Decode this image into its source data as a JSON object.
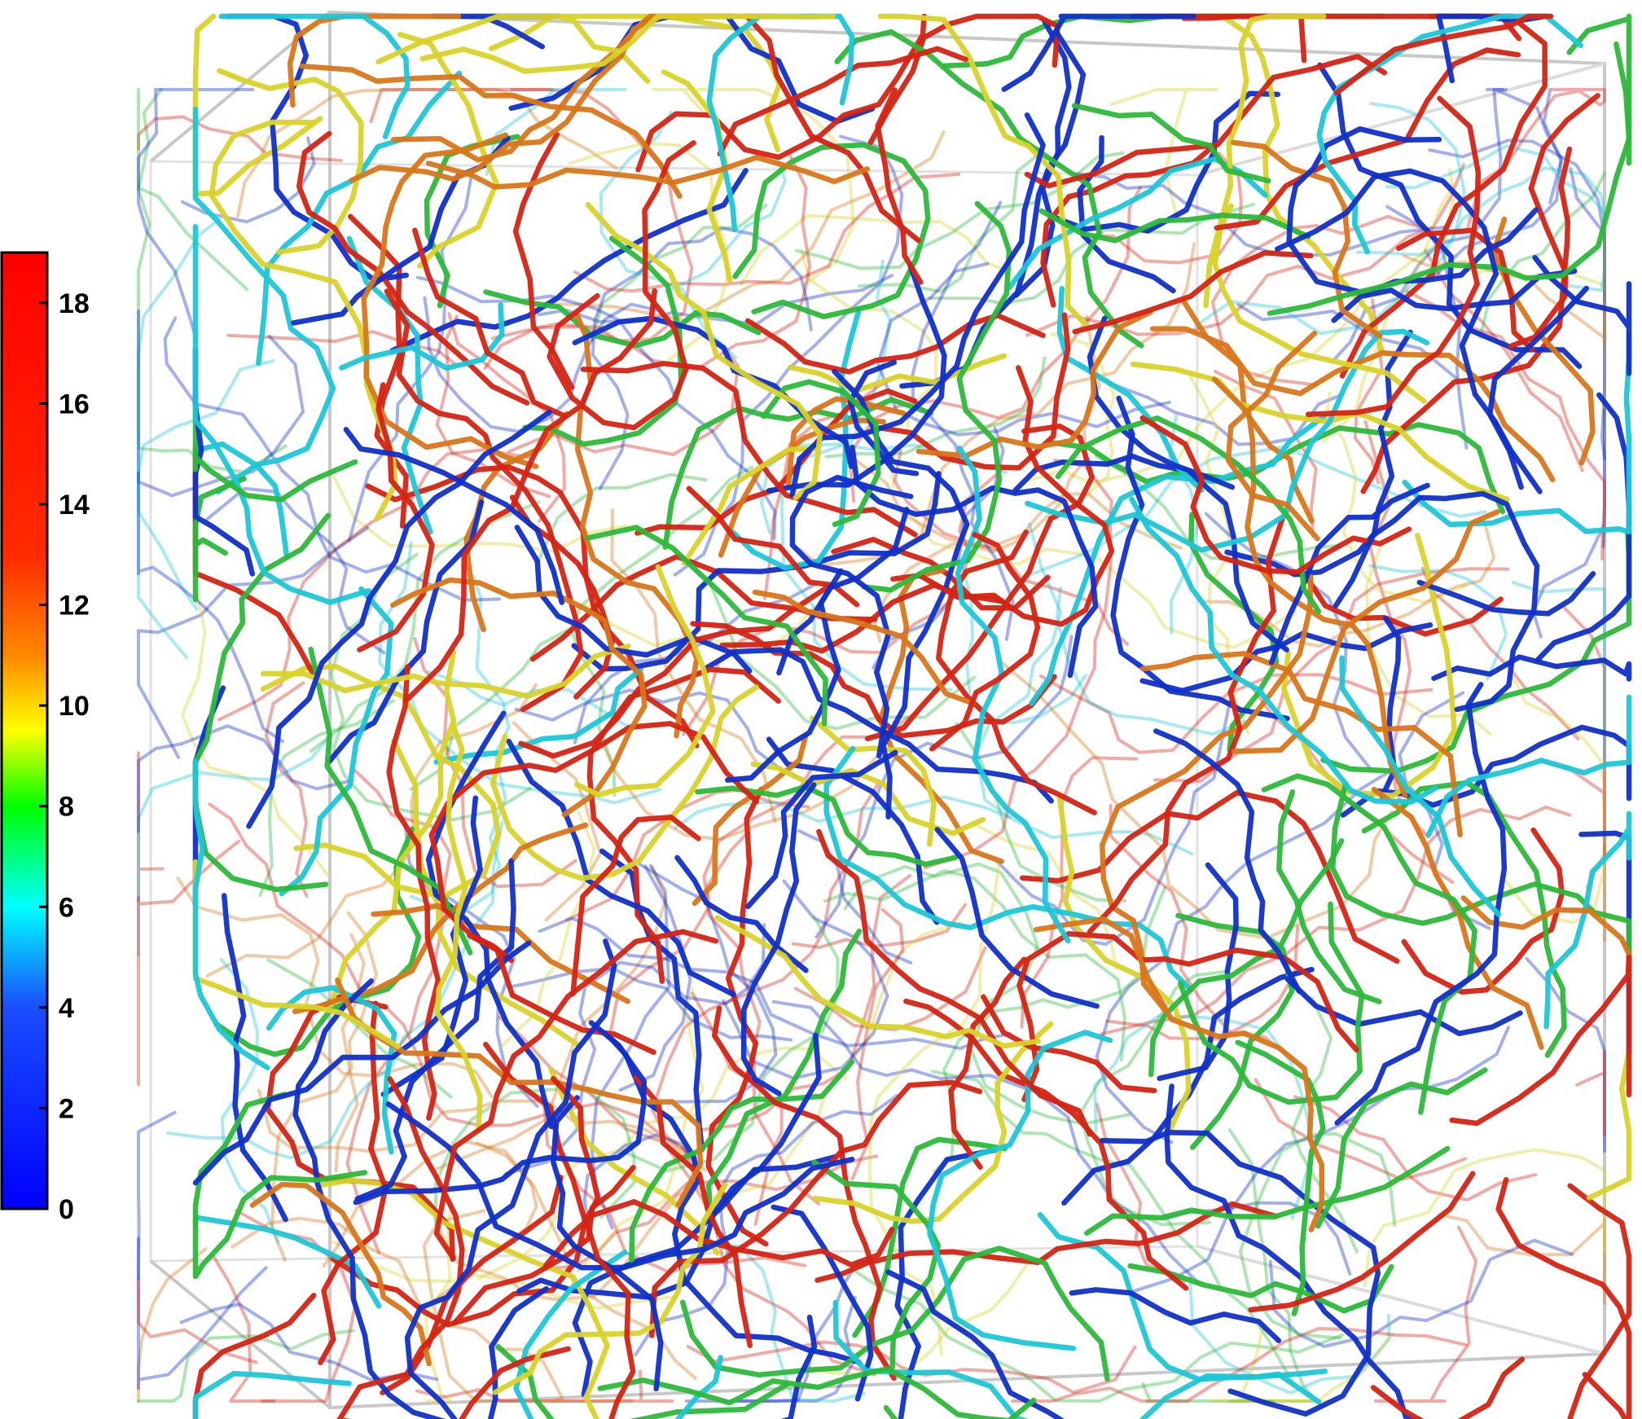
{
  "colorbar": {
    "min": 0,
    "max": 19,
    "ticks": [
      {
        "value": 0,
        "label": "0"
      },
      {
        "value": 2,
        "label": "2"
      },
      {
        "value": 4,
        "label": "4"
      },
      {
        "value": 6,
        "label": "6"
      },
      {
        "value": 8,
        "label": "8"
      },
      {
        "value": 10,
        "label": "10"
      },
      {
        "value": 12,
        "label": "12"
      },
      {
        "value": 14,
        "label": "14"
      },
      {
        "value": 16,
        "label": "16"
      },
      {
        "value": 18,
        "label": "18"
      }
    ],
    "stops": [
      {
        "value": 0,
        "color": "#0000ff"
      },
      {
        "value": 4,
        "color": "#1a4dff"
      },
      {
        "value": 6,
        "color": "#00ffff"
      },
      {
        "value": 8,
        "color": "#00ff00"
      },
      {
        "value": 9.5,
        "color": "#ffff00"
      },
      {
        "value": 11,
        "color": "#ff8800"
      },
      {
        "value": 13,
        "color": "#ff2a00"
      },
      {
        "value": 19,
        "color": "#ff0000"
      }
    ]
  },
  "network_palette": {
    "blue": "#1030c8",
    "cyan": "#1cc6d6",
    "green": "#2cb83a",
    "yellow": "#d8d22a",
    "orange": "#d8761a",
    "red": "#d42414",
    "box_edge": "#c8c8c8"
  }
}
